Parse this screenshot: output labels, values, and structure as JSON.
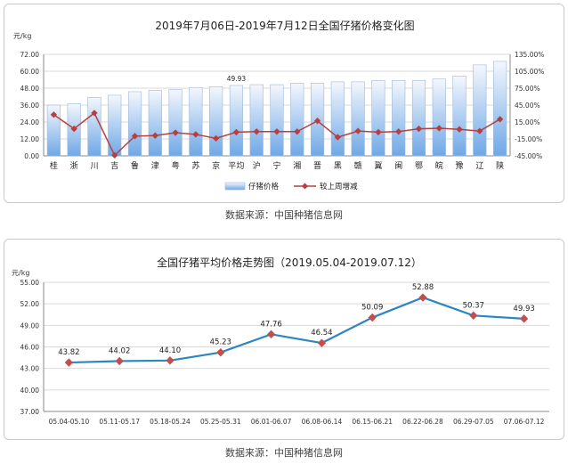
{
  "source_note": "数据来源：中国种猪信息网",
  "chart_data": [
    {
      "type": "bar",
      "title": "2019年7月06日-2019年7月12日全国仔猪价格变化图",
      "ylabel": "元/kg",
      "categories": [
        "桂",
        "浙",
        "川",
        "吉",
        "鲁",
        "津",
        "粤",
        "苏",
        "京",
        "平均",
        "沪",
        "宁",
        "湘",
        "晋",
        "黑",
        "赣",
        "冀",
        "闽",
        "鄂",
        "皖",
        "豫",
        "辽",
        "陕"
      ],
      "ylim": [
        0,
        72
      ],
      "yticks": [
        "0.00",
        "12.00",
        "24.00",
        "36.00",
        "48.00",
        "60.00",
        "72.00"
      ],
      "y2lim": [
        -45,
        135
      ],
      "y2ticks": [
        "-45.00%",
        "-15.00%",
        "15.00%",
        "45.00%",
        "75.00%",
        "105.00%",
        "135.00%"
      ],
      "annotation": "49.93",
      "grid": true,
      "legend_position": "bottom",
      "series": [
        {
          "name": "仔猪价格",
          "kind": "bar",
          "axis": "left",
          "color": "#6fa8e6",
          "values": [
            36,
            37,
            41.5,
            43,
            45.5,
            46.5,
            47,
            48.5,
            49,
            49.93,
            50.5,
            50.5,
            51.5,
            51.5,
            52.5,
            52.5,
            53.5,
            53.5,
            53.5,
            54.5,
            56.5,
            64.5,
            67
          ]
        },
        {
          "name": "较上周增减",
          "kind": "line",
          "axis": "right",
          "color": "#b5403f",
          "values": [
            28,
            3,
            31,
            -44,
            -10,
            -9,
            -4,
            -7,
            -14,
            -3,
            -2,
            -2,
            -2,
            17,
            -12,
            -1,
            -3,
            -2,
            3,
            4,
            2,
            -1,
            20
          ]
        }
      ]
    },
    {
      "type": "line",
      "title": "全国仔猪平均价格走势图（2019.05.04-2019.07.12）",
      "ylabel": "元/kg",
      "categories": [
        "05.04-05.10",
        "05.11-05.17",
        "05.18-05.24",
        "05.25-05.31",
        "06.01-06.07",
        "06.08-06.14",
        "06.15-06.21",
        "06.22-06.28",
        "06.29-07.05",
        "07.06-07.12"
      ],
      "values": [
        43.82,
        44.02,
        44.1,
        45.23,
        47.76,
        46.54,
        50.09,
        52.88,
        50.37,
        49.93
      ],
      "labels": [
        "43.82",
        "44.02",
        "44.10",
        "45.23",
        "47.76",
        "46.54",
        "50.09",
        "52.88",
        "50.37",
        "49.93"
      ],
      "ylim": [
        37,
        55
      ],
      "yticks": [
        "37.00",
        "40.00",
        "43.00",
        "46.00",
        "49.00",
        "52.00",
        "55.00"
      ],
      "grid": true,
      "line_color": "#2e86c1",
      "marker_color": "#c0504d"
    }
  ]
}
